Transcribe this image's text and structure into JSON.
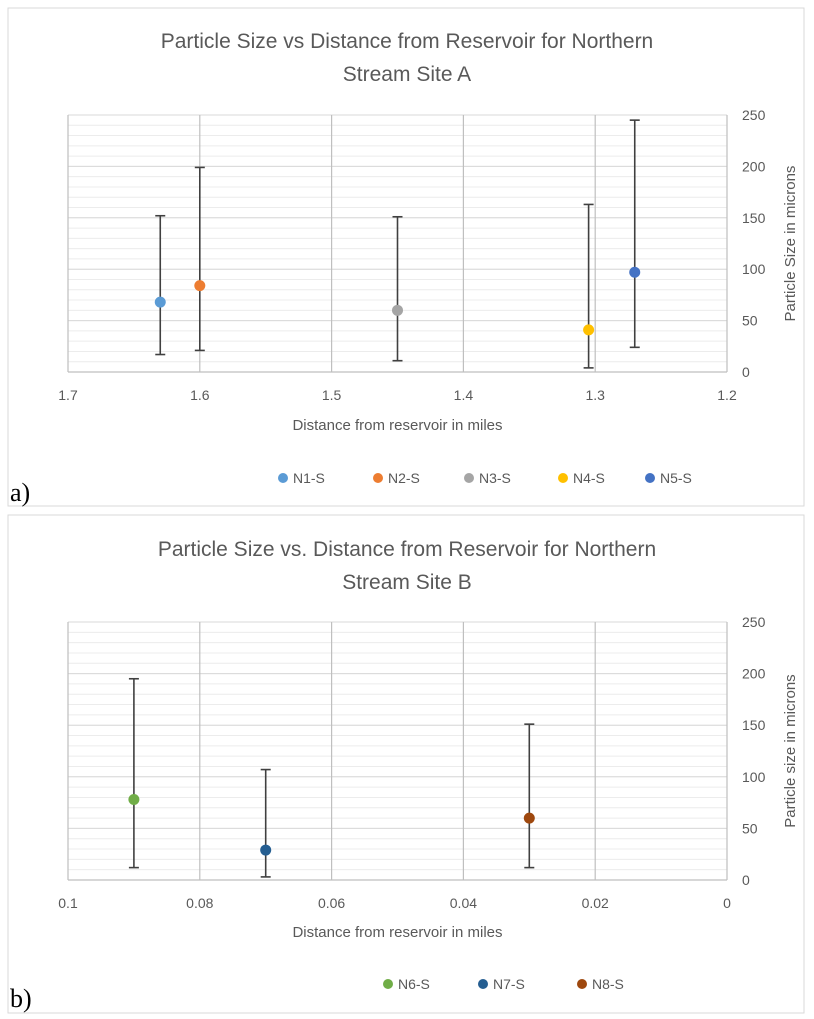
{
  "panels": [
    {
      "letter": "a)"
    },
    {
      "letter": "b)"
    }
  ],
  "chart_data": [
    {
      "type": "scatter",
      "title_lines": [
        "Particle Size vs Distance from Reservoir for Northern",
        "Stream Site A"
      ],
      "xlabel": "Distance from reservoir  in miles",
      "ylabel": "Particle Size in microns",
      "xlim": [
        1.7,
        1.2
      ],
      "x_reversed": true,
      "x_ticks": [
        "1.7",
        "1.6",
        "1.5",
        "1.4",
        "1.3",
        "1.2"
      ],
      "x_tick_values": [
        1.7,
        1.6,
        1.5,
        1.4,
        1.3,
        1.2
      ],
      "ylim": [
        0,
        250
      ],
      "y_ticks": [
        "0",
        "50",
        "100",
        "150",
        "200",
        "250"
      ],
      "y_tick_values": [
        0,
        50,
        100,
        150,
        200,
        250
      ],
      "y_axis_side": "right",
      "grid": true,
      "legend_position": "bottom",
      "series": [
        {
          "name": "N1-S",
          "color": "#5b9bd5",
          "x": 1.63,
          "y": 68,
          "err_low": 17,
          "err_high": 152
        },
        {
          "name": "N2-S",
          "color": "#ed7d31",
          "x": 1.6,
          "y": 84,
          "err_low": 21,
          "err_high": 199
        },
        {
          "name": "N3-S",
          "color": "#a5a5a5",
          "x": 1.45,
          "y": 60,
          "err_low": 11,
          "err_high": 151
        },
        {
          "name": "N4-S",
          "color": "#ffc000",
          "x": 1.305,
          "y": 41,
          "err_low": 4,
          "err_high": 163
        },
        {
          "name": "N5-S",
          "color": "#4472c4",
          "x": 1.27,
          "y": 97,
          "err_low": 24,
          "err_high": 245
        }
      ]
    },
    {
      "type": "scatter",
      "title_lines": [
        "Particle Size vs. Distance from Reservoir for Northern",
        "Stream Site B"
      ],
      "xlabel": "Distance from reservoir  in miles",
      "ylabel": "Particle size in microns",
      "xlim": [
        0.1,
        0
      ],
      "x_reversed": true,
      "x_ticks": [
        "0.1",
        "0.08",
        "0.06",
        "0.04",
        "0.02",
        "0"
      ],
      "x_tick_values": [
        0.1,
        0.08,
        0.06,
        0.04,
        0.02,
        0
      ],
      "ylim": [
        0,
        250
      ],
      "y_ticks": [
        "0",
        "50",
        "100",
        "150",
        "200",
        "250"
      ],
      "y_tick_values": [
        0,
        50,
        100,
        150,
        200,
        250
      ],
      "y_axis_side": "right",
      "grid": true,
      "legend_position": "bottom",
      "series": [
        {
          "name": "N6-S",
          "color": "#70ad47",
          "x": 0.09,
          "y": 78,
          "err_low": 12,
          "err_high": 195
        },
        {
          "name": "N7-S",
          "color": "#255e91",
          "x": 0.07,
          "y": 29,
          "err_low": 3,
          "err_high": 107
        },
        {
          "name": "N8-S",
          "color": "#9e480e",
          "x": 0.03,
          "y": 60,
          "err_low": 12,
          "err_high": 151
        }
      ]
    }
  ]
}
